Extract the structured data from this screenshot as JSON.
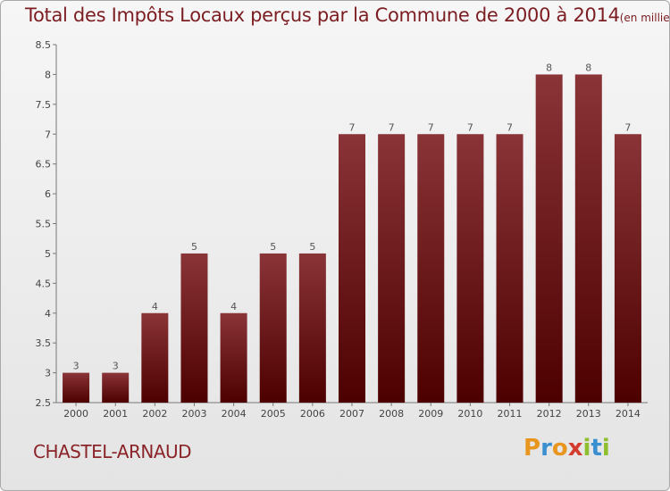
{
  "chart_data": {
    "type": "bar",
    "title": "Total des Impôts Locaux perçus par la Commune de 2000 à 2014",
    "unit": "(en milliers d'€)",
    "categories": [
      "2000",
      "2001",
      "2002",
      "2003",
      "2004",
      "2005",
      "2006",
      "2007",
      "2008",
      "2009",
      "2010",
      "2011",
      "2012",
      "2013",
      "2014"
    ],
    "values": [
      3,
      3,
      4,
      5,
      4,
      5,
      5,
      7,
      7,
      7,
      7,
      7,
      8,
      8,
      7
    ],
    "ylim": [
      2.5,
      8.5
    ],
    "yticks": [
      "2.5",
      "3",
      "3.5",
      "4",
      "4.5",
      "5",
      "5.5",
      "6",
      "6.5",
      "7",
      "7.5",
      "8",
      "8.5"
    ],
    "xlabel": "",
    "ylabel": "",
    "grid": false,
    "legend": "none",
    "bar_color_top": "#8a3438",
    "bar_color_bottom": "#4d0000"
  },
  "footer": {
    "commune": "CHASTEL-ARNAUD",
    "logo_letters": [
      "P",
      "r",
      "o",
      "x",
      "i",
      "t",
      "i"
    ],
    "logo_colors": [
      "#e8961e",
      "#3a8fd1",
      "#e8961e",
      "#d43c2f",
      "#8fbf2e",
      "#3a8fd1",
      "#8fbf2e"
    ]
  }
}
